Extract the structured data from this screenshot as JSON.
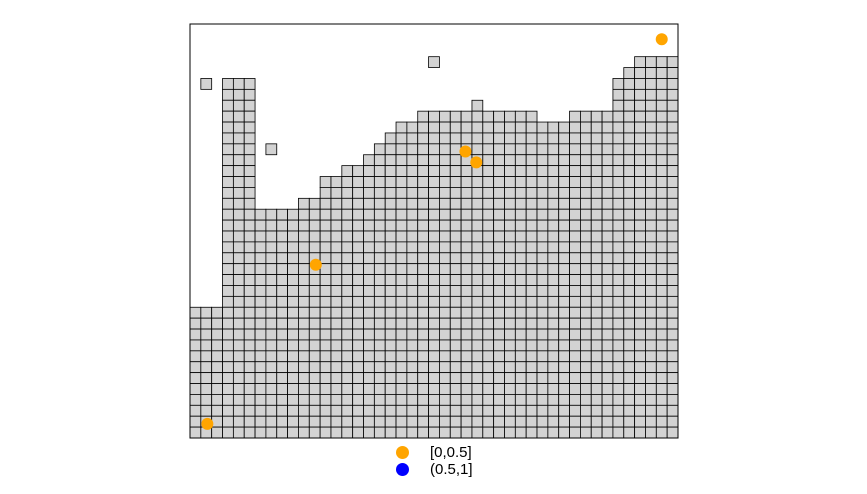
{
  "map": {
    "grid_cols": 45,
    "grid_rows": 38,
    "cell_fill": "#d3d3d3",
    "cell_stroke": "#000000",
    "frame_stroke": "#000000",
    "coverage_top_row_by_col": [
      26,
      26,
      26,
      5,
      5,
      5,
      17,
      17,
      17,
      17,
      16,
      16,
      14,
      14,
      13,
      13,
      12,
      11,
      10,
      9,
      9,
      8,
      8,
      8,
      8,
      8,
      7,
      8,
      8,
      8,
      8,
      8,
      9,
      9,
      9,
      8,
      8,
      8,
      8,
      5,
      4,
      3,
      3,
      3,
      3
    ],
    "isolated_cells": [
      {
        "col": 1,
        "row": 5
      },
      {
        "col": 7,
        "row": 11
      },
      {
        "col": 22,
        "row": 3
      }
    ],
    "points": [
      {
        "col": 43.5,
        "row": 1.4,
        "class": "[0,0.5]"
      },
      {
        "col": 25.4,
        "row": 11.7,
        "class": "[0,0.5]"
      },
      {
        "col": 26.4,
        "row": 12.7,
        "class": "[0,0.5]"
      },
      {
        "col": 11.6,
        "row": 22.1,
        "class": "[0,0.5]"
      },
      {
        "col": 1.6,
        "row": 36.7,
        "class": "[0,0.5]"
      }
    ]
  },
  "legend": {
    "items": [
      {
        "label": "[0,0.5]",
        "color": "#ffa500"
      },
      {
        "label": "(0.5,1]",
        "color": "#0000ff"
      }
    ]
  }
}
